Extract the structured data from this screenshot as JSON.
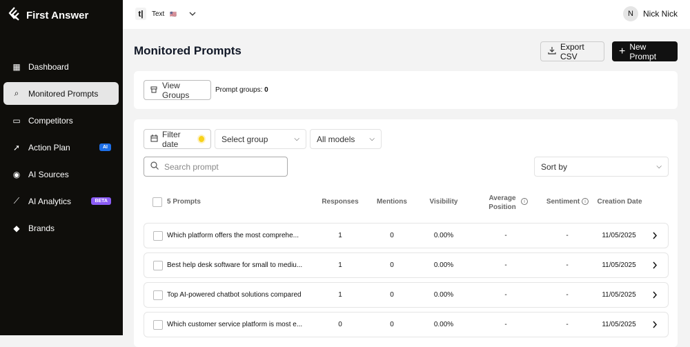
{
  "app": {
    "name": "First Answer"
  },
  "sidebar": {
    "items": [
      {
        "label": "Dashboard",
        "icon": "dashboard-icon"
      },
      {
        "label": "Monitored Prompts",
        "icon": "search-chart-icon",
        "active": true
      },
      {
        "label": "Competitors",
        "icon": "folder-user-icon"
      },
      {
        "label": "Action Plan",
        "icon": "rocket-icon",
        "badge": "AI",
        "badge_color": "#1d6fe8"
      },
      {
        "label": "AI Sources",
        "icon": "compass-icon"
      },
      {
        "label": "AI Analytics",
        "icon": "line-chart-icon",
        "badge": "BETA",
        "badge_color": "#8b5cf6"
      },
      {
        "label": "Brands",
        "icon": "tag-icon"
      }
    ]
  },
  "topbar": {
    "workspace_icon": "t|",
    "workspace": "Text",
    "flag": "🇺🇸",
    "user_initial": "N",
    "user_name": "Nick Nick"
  },
  "page": {
    "title": "Monitored Prompts",
    "export_label": "Export CSV",
    "new_label": "New Prompt"
  },
  "groups": {
    "view_label": "View Groups",
    "count_label": "Prompt groups:",
    "count": "0"
  },
  "filters": {
    "date_label": "Filter date",
    "group_placeholder": "Select group",
    "models": "All models",
    "search_placeholder": "Search prompt",
    "sort": "Sort by"
  },
  "table": {
    "count_label": "5 Prompts",
    "headers": {
      "responses": "Responses",
      "mentions": "Mentions",
      "visibility": "Visibility",
      "avg1": "Average",
      "avg2": "Position",
      "sentiment": "Sentiment",
      "date": "Creation Date"
    },
    "rows": [
      {
        "prompt": "Which platform offers the most comprehe...",
        "responses": "1",
        "mentions": "0",
        "visibility": "0.00%",
        "position": "-",
        "sentiment": "-",
        "date": "11/05/2025"
      },
      {
        "prompt": "Best help desk software for small to mediu...",
        "responses": "1",
        "mentions": "0",
        "visibility": "0.00%",
        "position": "-",
        "sentiment": "-",
        "date": "11/05/2025"
      },
      {
        "prompt": "Top AI-powered chatbot solutions compared",
        "responses": "1",
        "mentions": "0",
        "visibility": "0.00%",
        "position": "-",
        "sentiment": "-",
        "date": "11/05/2025"
      },
      {
        "prompt": "Which customer service platform is most e...",
        "responses": "0",
        "mentions": "0",
        "visibility": "0.00%",
        "position": "-",
        "sentiment": "-",
        "date": "11/05/2025"
      }
    ]
  }
}
